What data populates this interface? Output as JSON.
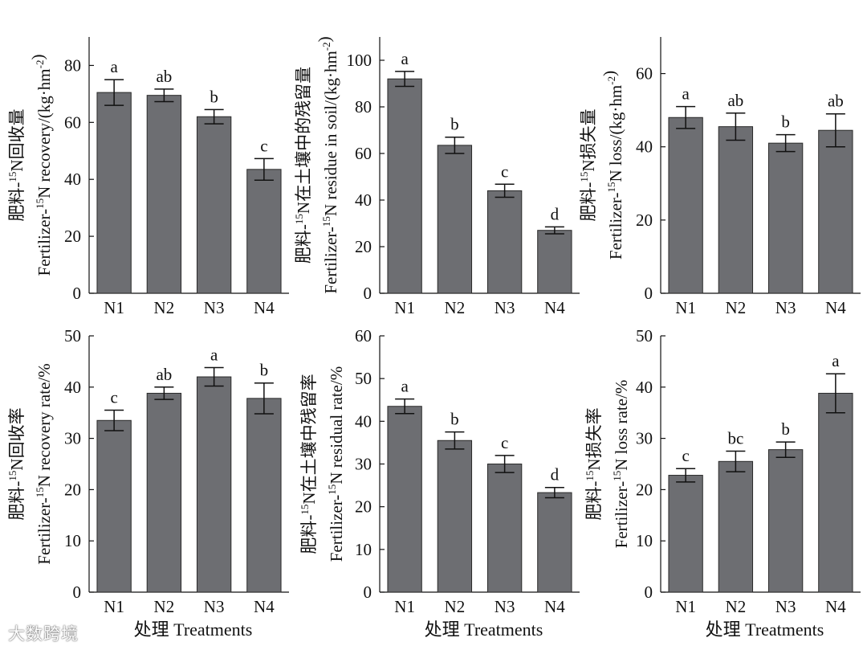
{
  "colors": {
    "bar": "#6d6e72",
    "bar_edge": "#2a2a2a",
    "axis": "#111111"
  },
  "x_title": "处理  Treatments",
  "watermark": "大数跨境",
  "chart_data": [
    {
      "type": "bar",
      "ylabel_cn": "肥料-15N回收量",
      "ylabel_en": "Fertilizer-15N recovery/(kg·hm-2)",
      "categories": [
        "N1",
        "N2",
        "N3",
        "N4"
      ],
      "values": [
        70.5,
        69.5,
        62,
        43.5
      ],
      "errors": [
        4.5,
        2.2,
        2.5,
        3.8
      ],
      "letters": [
        "a",
        "ab",
        "b",
        "c"
      ],
      "ylim": [
        0,
        90
      ],
      "yticks": [
        "0",
        "20",
        "40",
        "60",
        "80"
      ],
      "xtitle_shown": false
    },
    {
      "type": "bar",
      "ylabel_cn": "肥料-15N在土壤中的残留量",
      "ylabel_en": "Fertilizer-15N residue in soil/(kg·hm-2)",
      "categories": [
        "N1",
        "N2",
        "N3",
        "N4"
      ],
      "values": [
        92,
        63.5,
        44,
        27
      ],
      "errors": [
        3.2,
        3.5,
        2.8,
        1.5
      ],
      "letters": [
        "a",
        "b",
        "c",
        "d"
      ],
      "ylim": [
        0,
        110
      ],
      "yticks": [
        "0",
        "20",
        "40",
        "60",
        "80",
        "100"
      ],
      "xtitle_shown": false
    },
    {
      "type": "bar",
      "ylabel_cn": "肥料-15N损失量",
      "ylabel_en": "Fertilizer-15N loss/(kg·hm-2)",
      "categories": [
        "N1",
        "N2",
        "N3",
        "N4"
      ],
      "values": [
        48,
        45.5,
        41,
        44.5
      ],
      "errors": [
        3,
        3.7,
        2.3,
        4.5
      ],
      "letters": [
        "a",
        "ab",
        "b",
        "ab"
      ],
      "ylim": [
        0,
        70
      ],
      "yticks": [
        "0",
        "20",
        "40",
        "60"
      ],
      "xtitle_shown": false
    },
    {
      "type": "bar",
      "ylabel_cn": "肥料-15N回收率",
      "ylabel_en": "Fertilizer-15N recovery rate/%",
      "categories": [
        "N1",
        "N2",
        "N3",
        "N4"
      ],
      "values": [
        33.5,
        38.8,
        42,
        37.8
      ],
      "errors": [
        2,
        1.2,
        1.8,
        3
      ],
      "letters": [
        "c",
        "ab",
        "a",
        "b"
      ],
      "ylim": [
        0,
        50
      ],
      "yticks": [
        "0",
        "10",
        "20",
        "30",
        "40",
        "50"
      ],
      "xtitle_shown": true
    },
    {
      "type": "bar",
      "ylabel_cn": "肥料-15N在土壤中残留率",
      "ylabel_en": "Fertilizer-15N residual rate/%",
      "categories": [
        "N1",
        "N2",
        "N3",
        "N4"
      ],
      "values": [
        43.5,
        35.5,
        30,
        23.3
      ],
      "errors": [
        1.7,
        2,
        2,
        1.2
      ],
      "letters": [
        "a",
        "b",
        "c",
        "d"
      ],
      "ylim": [
        0,
        60
      ],
      "yticks": [
        "0",
        "10",
        "20",
        "30",
        "40",
        "50",
        "60"
      ],
      "xtitle_shown": true
    },
    {
      "type": "bar",
      "ylabel_cn": "肥料-15N损失率",
      "ylabel_en": "Fertilizer-15N loss rate/%",
      "categories": [
        "N1",
        "N2",
        "N3",
        "N4"
      ],
      "values": [
        22.8,
        25.5,
        27.8,
        38.8
      ],
      "errors": [
        1.3,
        2,
        1.5,
        3.8
      ],
      "letters": [
        "c",
        "bc",
        "b",
        "a"
      ],
      "ylim": [
        0,
        50
      ],
      "yticks": [
        "0",
        "10",
        "20",
        "30",
        "40",
        "50"
      ],
      "xtitle_shown": true
    }
  ]
}
